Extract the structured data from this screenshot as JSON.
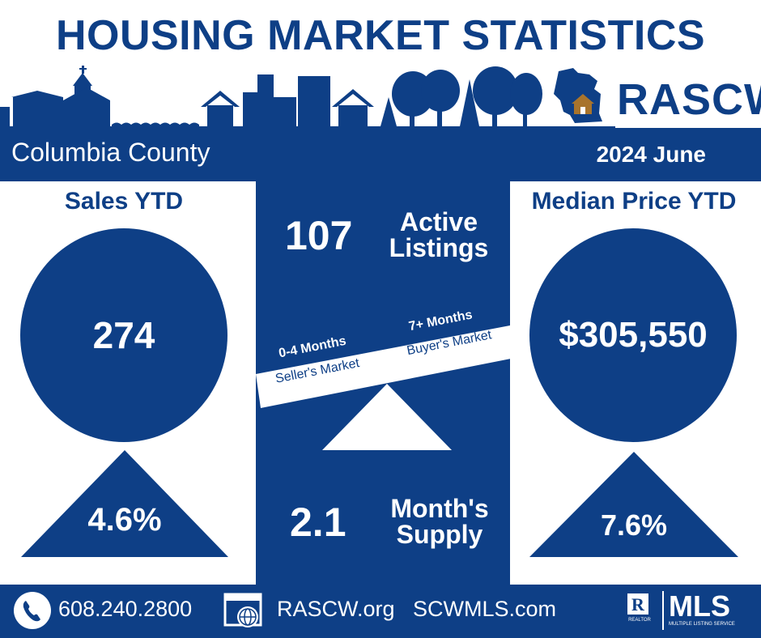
{
  "header": {
    "title": "HOUSING MARKET STATISTICS",
    "logo_text": "RASCW",
    "county": "Columbia County",
    "period": "2024 June"
  },
  "sales": {
    "heading": "Sales YTD",
    "value": "274",
    "change": "4.6%"
  },
  "center": {
    "active_value": "107",
    "active_label_1": "Active",
    "active_label_2": "Listings",
    "sellers_range": "0-4 Months",
    "sellers_label": "Seller's Market",
    "buyers_range": "7+ Months",
    "buyers_label": "Buyer's Market",
    "supply_value": "2.1",
    "supply_label_1": "Month's",
    "supply_label_2": "Supply"
  },
  "median": {
    "heading": "Median Price YTD",
    "value": "$305,550",
    "change": "7.6%"
  },
  "footer": {
    "phone": "608.240.2800",
    "site1": "RASCW.org",
    "site2": "SCWMLS.com",
    "mls_text": "MLS",
    "mls_sub": "MULTIPLE LISTING SERVICE",
    "realtor_text": "REALTOR"
  },
  "colors": {
    "primary": "#0e3f86",
    "accent_house": "#a8742c",
    "white": "#ffffff"
  }
}
